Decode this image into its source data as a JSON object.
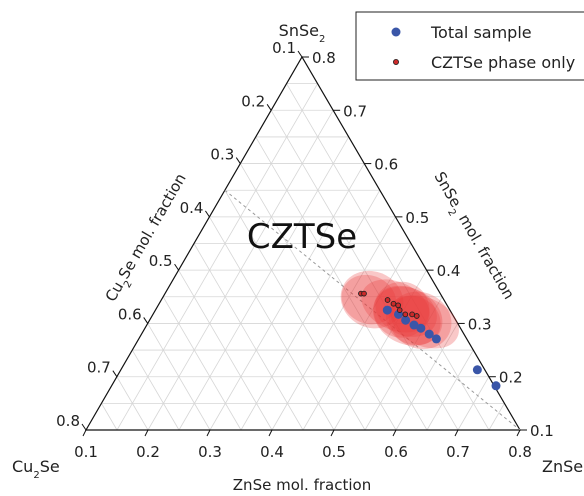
{
  "chart_data": {
    "type": "ternary-scatter",
    "vertices": {
      "top": "SnSe",
      "top_sub": "2",
      "left": "Cu",
      "left_sub": "2",
      "left_suffix": "Se",
      "right": "ZnSe"
    },
    "axes": {
      "bottom": {
        "label": "ZnSe mol. fraction",
        "range": [
          0.1,
          0.8
        ],
        "ticks": [
          "0.1",
          "0.2",
          "0.3",
          "0.4",
          "0.5",
          "0.6",
          "0.7",
          "0.8"
        ]
      },
      "left": {
        "label_main": "Cu",
        "label_sub": "2",
        "label_rest": "Se mol. fraction",
        "range": [
          0.1,
          0.8
        ],
        "ticks": [
          "0.1",
          "0.2",
          "0.3",
          "0.4",
          "0.5",
          "0.6",
          "0.7",
          "0.8"
        ]
      },
      "right": {
        "label_main": "SnSe",
        "label_sub": "2",
        "label_rest": " mol. fraction",
        "range": [
          0.1,
          0.8
        ],
        "ticks": [
          "0.1",
          "0.2",
          "0.3",
          "0.4",
          "0.5",
          "0.6",
          "0.7",
          "0.8"
        ]
      }
    },
    "region_label": "CZTSe",
    "legend": [
      {
        "label": "Total sample",
        "color": "#3a56a8",
        "marker": "circle-filled"
      },
      {
        "label": "CZTSe phase only",
        "color": "#cc2a2a",
        "marker": "circle-small"
      }
    ],
    "series": [
      {
        "name": "Total sample",
        "color": "#3a56a8",
        "points": [
          {
            "ZnSe": 0.474,
            "SnSe2": 0.325
          },
          {
            "ZnSe": 0.496,
            "SnSe2": 0.317
          },
          {
            "ZnSe": 0.513,
            "SnSe2": 0.306
          },
          {
            "ZnSe": 0.531,
            "SnSe2": 0.297
          },
          {
            "ZnSe": 0.545,
            "SnSe2": 0.291
          },
          {
            "ZnSe": 0.564,
            "SnSe2": 0.28
          },
          {
            "ZnSe": 0.58,
            "SnSe2": 0.271
          },
          {
            "ZnSe": 0.675,
            "SnSe2": 0.213
          },
          {
            "ZnSe": 0.72,
            "SnSe2": 0.183
          }
        ]
      },
      {
        "name": "CZTSe phase only",
        "color": "#cc2a2a",
        "points": [
          {
            "ZnSe": 0.416,
            "SnSe2": 0.356
          },
          {
            "ZnSe": 0.421,
            "SnSe2": 0.356
          },
          {
            "ZnSe": 0.465,
            "SnSe2": 0.344
          },
          {
            "ZnSe": 0.478,
            "SnSe2": 0.337
          },
          {
            "ZnSe": 0.487,
            "SnSe2": 0.334
          },
          {
            "ZnSe": 0.494,
            "SnSe2": 0.325
          },
          {
            "ZnSe": 0.507,
            "SnSe2": 0.317
          },
          {
            "ZnSe": 0.518,
            "SnSe2": 0.317
          },
          {
            "ZnSe": 0.527,
            "SnSe2": 0.314
          }
        ]
      }
    ],
    "reference_line": {
      "from": {
        "ZnSe": 0.1,
        "SnSe2": 0.55
      },
      "to": {
        "ZnSe": 0.8,
        "SnSe2": 0.1
      }
    }
  }
}
